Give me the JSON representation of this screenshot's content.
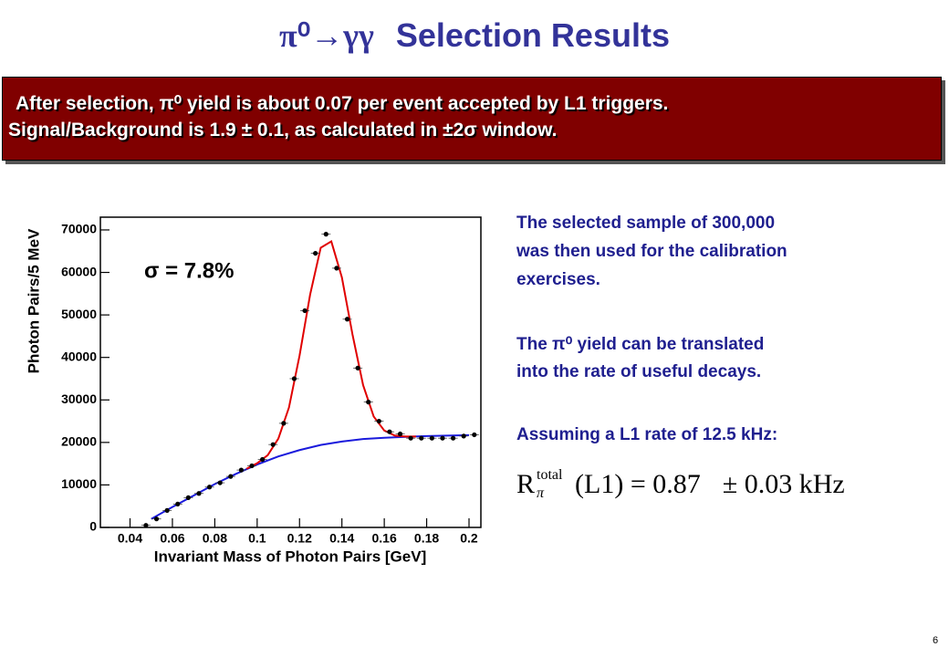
{
  "slide": {
    "title_symbol": "π⁰→γγ",
    "title": "Selection Results",
    "banner": [
      "After selection, π⁰ yield is about 0.07 per event accepted by L1 triggers.",
      "Signal/Background is 1.9 ± 0.1, as calculated in ±2σ window."
    ],
    "notes": [
      "The selected sample of 300,000",
      "was then used for the calibration",
      "exercises.",
      "The π⁰ yield can be translated",
      "into the rate of useful decays.",
      "Assuming a L1 rate of 12.5 kHz:"
    ],
    "formula": {
      "symbol": "R",
      "subscript": "π",
      "superscript": "total",
      "body": "(L1) = 0.87",
      "error": "± 0.03 kHz"
    },
    "page_number": "6"
  },
  "chart_data": {
    "type": "scatter",
    "y_label": "Photon Pairs/5 MeV",
    "x_label": "Invariant Mass of Photon Pairs [GeV]",
    "annotation": "σ = 7.8%",
    "xlim": [
      0.026,
      0.2056
    ],
    "ylim": [
      0,
      73000
    ],
    "xticks": [
      0.04,
      0.06,
      0.08,
      0.1,
      0.12,
      0.14,
      0.16,
      0.18,
      0.2
    ],
    "yticks": [
      0,
      10000,
      20000,
      30000,
      40000,
      50000,
      60000,
      70000
    ],
    "series": [
      {
        "mode": "markers",
        "color": "#000000",
        "x": [
          0.0475,
          0.0525,
          0.0575,
          0.0625,
          0.0675,
          0.0725,
          0.0775,
          0.0825,
          0.0875,
          0.0925,
          0.0975,
          0.1025,
          0.1075,
          0.1125,
          0.1175,
          0.1225,
          0.1275,
          0.1325,
          0.1375,
          0.1425,
          0.1475,
          0.1525,
          0.1575,
          0.1625,
          0.1675,
          0.1725,
          0.1775,
          0.1825,
          0.1875,
          0.1925,
          0.1975,
          0.2025
        ],
        "values": [
          500,
          2000,
          4000,
          5500,
          7000,
          8000,
          9500,
          10500,
          12000,
          13500,
          14500,
          16000,
          19500,
          24500,
          35000,
          51000,
          64500,
          69000,
          61000,
          49000,
          37500,
          29500,
          25000,
          22500,
          22000,
          21000,
          21000,
          21000,
          21000,
          21000,
          21500,
          21800
        ]
      },
      {
        "mode": "line",
        "color": "#1a1adc",
        "x": [
          0.05,
          0.06,
          0.07,
          0.08,
          0.09,
          0.1,
          0.11,
          0.12,
          0.13,
          0.14,
          0.15,
          0.16,
          0.17,
          0.18,
          0.19,
          0.2
        ],
        "values": [
          2000,
          4800,
          7500,
          10200,
          12600,
          14800,
          16700,
          18200,
          19400,
          20200,
          20800,
          21100,
          21300,
          21500,
          21600,
          21700
        ]
      },
      {
        "mode": "line",
        "color": "#e00000",
        "x": [
          0.095,
          0.1,
          0.105,
          0.11,
          0.115,
          0.12,
          0.125,
          0.13,
          0.135,
          0.14,
          0.145,
          0.15,
          0.155,
          0.16,
          0.165,
          0.17,
          0.175
        ],
        "values": [
          13800,
          15100,
          17000,
          20900,
          28200,
          40400,
          54800,
          65800,
          67300,
          58800,
          45400,
          33500,
          26100,
          22800,
          21600,
          21400,
          21400
        ]
      }
    ]
  }
}
